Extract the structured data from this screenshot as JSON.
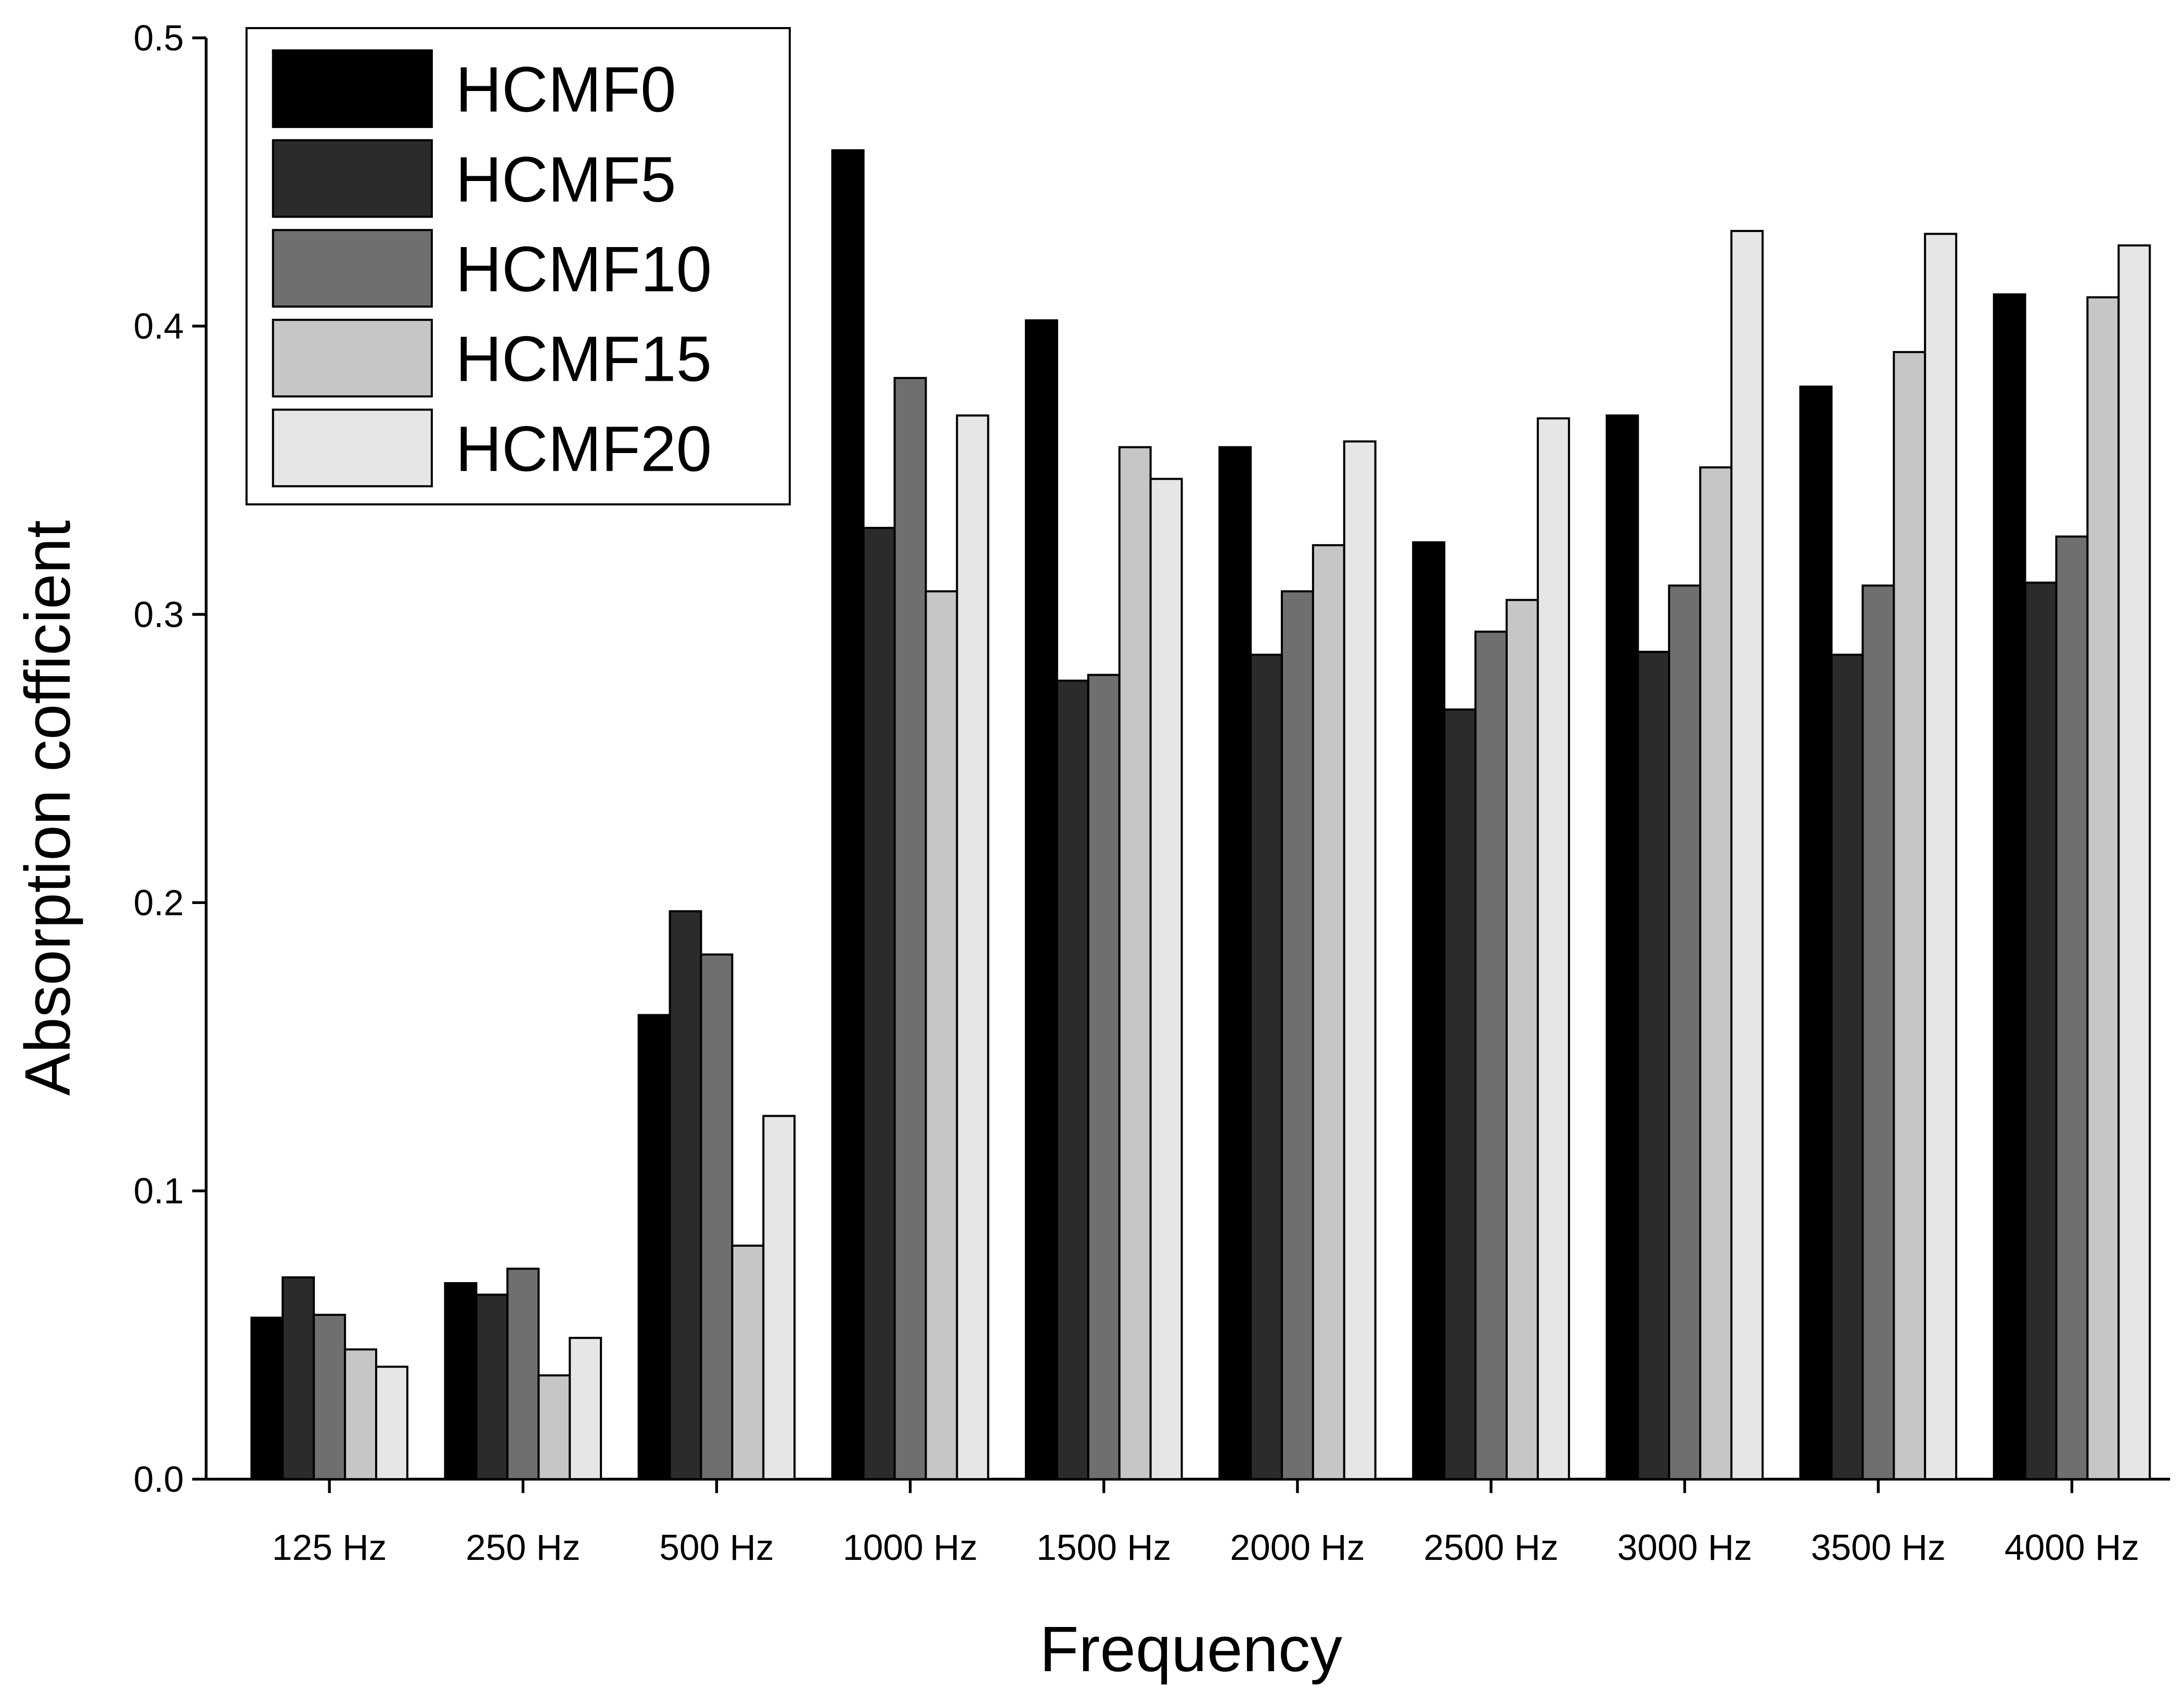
{
  "chart_data": {
    "type": "bar",
    "x_label": "Frequency",
    "y_label": "Absorption cofficient",
    "categories": [
      "125 Hz",
      "250 Hz",
      "500 Hz",
      "1000 Hz",
      "1500 Hz",
      "2000 Hz",
      "2500 Hz",
      "3000 Hz",
      "3500 Hz",
      "4000 Hz"
    ],
    "series": [
      {
        "name": "HCMF0",
        "color": "#000000",
        "values": [
          0.056,
          0.068,
          0.161,
          0.461,
          0.402,
          0.358,
          0.325,
          0.369,
          0.379,
          0.411
        ]
      },
      {
        "name": "HCMF5",
        "color": "#2b2b2b",
        "values": [
          0.07,
          0.064,
          0.197,
          0.33,
          0.277,
          0.286,
          0.267,
          0.287,
          0.286,
          0.311
        ]
      },
      {
        "name": "HCMF10",
        "color": "#6f6f6f",
        "values": [
          0.057,
          0.073,
          0.182,
          0.382,
          0.279,
          0.308,
          0.294,
          0.31,
          0.31,
          0.327
        ]
      },
      {
        "name": "HCMF15",
        "color": "#c6c6c6",
        "values": [
          0.045,
          0.036,
          0.081,
          0.308,
          0.358,
          0.324,
          0.305,
          0.351,
          0.391,
          0.41
        ]
      },
      {
        "name": "HCMF20",
        "color": "#e6e6e6",
        "values": [
          0.039,
          0.049,
          0.126,
          0.369,
          0.347,
          0.36,
          0.368,
          0.433,
          0.432,
          0.428
        ]
      }
    ],
    "ylim": [
      0,
      0.5
    ],
    "yticks": [
      {
        "value": 0,
        "label": "0.0"
      },
      0.1,
      0.2,
      0.3,
      0.4,
      0.5
    ],
    "legend_position": "upper left"
  }
}
